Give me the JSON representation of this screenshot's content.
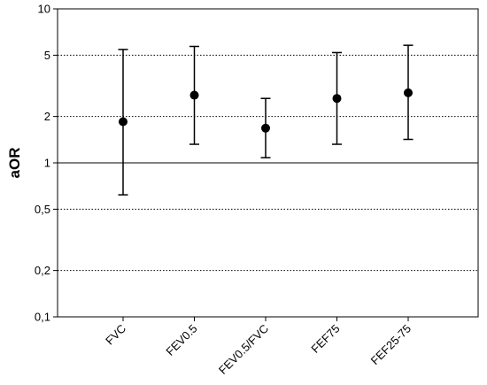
{
  "chart_data": {
    "type": "scatter",
    "subtype": "error-bar",
    "title": "",
    "xlabel": "",
    "ylabel": "aOR",
    "yscale": "log",
    "ylim": [
      0.1,
      10
    ],
    "yticks": [
      {
        "value": 0.1,
        "label": "0,1"
      },
      {
        "value": 0.2,
        "label": "0,2"
      },
      {
        "value": 0.5,
        "label": "0,5"
      },
      {
        "value": 1,
        "label": "1"
      },
      {
        "value": 2,
        "label": "2"
      },
      {
        "value": 5,
        "label": "5"
      },
      {
        "value": 10,
        "label": "10"
      }
    ],
    "gridlines": [
      {
        "value": 0.2,
        "style": "dotted"
      },
      {
        "value": 0.5,
        "style": "dotted"
      },
      {
        "value": 1,
        "style": "solid"
      },
      {
        "value": 2,
        "style": "dotted"
      },
      {
        "value": 5,
        "style": "dotted"
      }
    ],
    "categories": [
      "FVC",
      "FEV0.5",
      "FEV0.5/FVC",
      "FEF75",
      "FEF25-75"
    ],
    "values": [
      1.85,
      2.75,
      1.68,
      2.62,
      2.85
    ],
    "lower": [
      0.62,
      1.32,
      1.08,
      1.32,
      1.42
    ],
    "upper": [
      5.45,
      5.7,
      2.62,
      5.2,
      5.8
    ],
    "colors": {
      "marker": "#000000",
      "axis": "#000000"
    }
  }
}
